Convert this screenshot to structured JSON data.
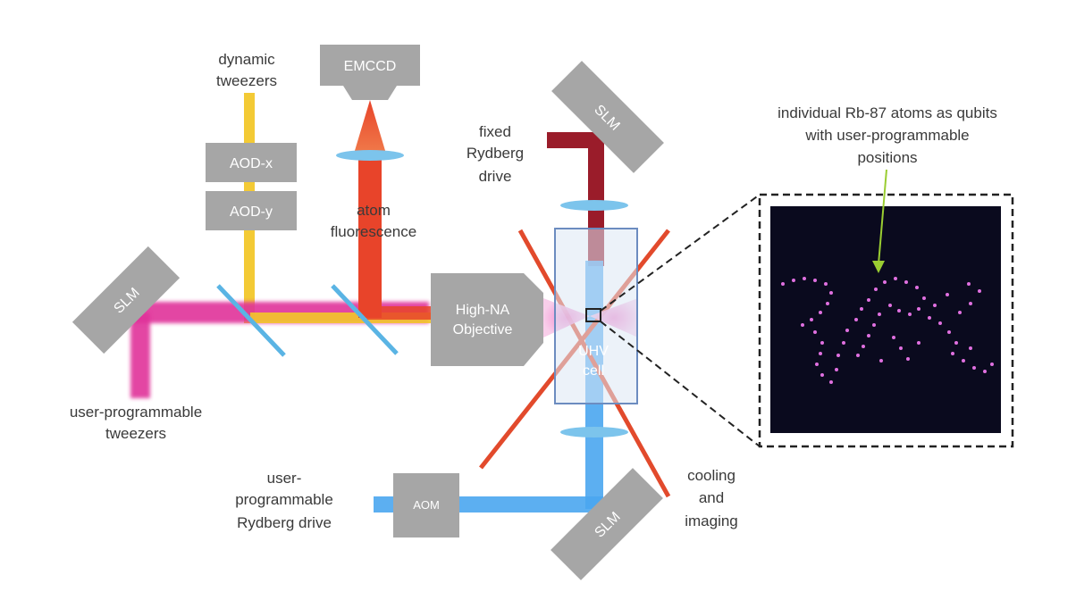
{
  "labels": {
    "dynamic_tweezers": [
      "dynamic",
      "tweezers"
    ],
    "emccd": "EMCCD",
    "aod_x": "AOD-x",
    "aod_y": "AOD-y",
    "atom_fluorescence": [
      "atom",
      "fluorescence"
    ],
    "fixed_rydberg": [
      "fixed",
      "Rydberg",
      "drive"
    ],
    "slm_top": "SLM",
    "slm_left": "SLM",
    "slm_bottom": "SLM",
    "objective": [
      "High-NA",
      "Objective"
    ],
    "uhv_cell": [
      "UHV",
      "cell"
    ],
    "user_tweezers": [
      "user-programmable",
      "tweezers"
    ],
    "user_rydberg": [
      "user-",
      "programmable",
      "Rydberg drive"
    ],
    "aom": "AOM",
    "cooling": [
      "cooling",
      "and",
      "imaging"
    ],
    "atoms_caption": [
      "individual Rb-87 atoms as qubits",
      "with user-programmable",
      "positions"
    ]
  },
  "colors": {
    "device_gray": "#a6a6a6",
    "tweezer_magenta": "#e0309a",
    "tweezer_yellow": "#f2c72a",
    "fluorescence_red": "#e8442a",
    "rydberg_dark_red": "#9a1c2a",
    "rydberg_blue": "#4aa6f0",
    "lens_blue": "#7cc4ec",
    "cooling_red": "#e24a2c",
    "arrow_green": "#9acd32",
    "atom_pink": "#e070e0",
    "panel_bg": "#0a0a1e"
  }
}
